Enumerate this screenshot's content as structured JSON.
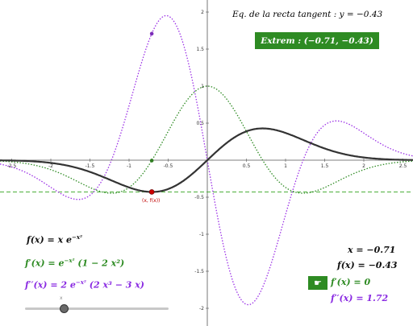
{
  "graph": {
    "x_range": [
      -2.6,
      2.6
    ],
    "y_range": [
      -2.1,
      2.05
    ],
    "x_ticks": [
      "-2.5",
      "-2",
      "-1.5",
      "-1",
      "-0.5",
      "0.5",
      "1",
      "1.5",
      "2",
      "2.5"
    ],
    "x_tick_values": [
      -2.5,
      -2,
      -1.5,
      -1,
      -0.5,
      0.5,
      1,
      1.5,
      2,
      2.5
    ],
    "y_ticks": [
      "2",
      "1.5",
      "1",
      "0.5",
      "-0.5",
      "-1",
      "-1.5",
      "-2"
    ],
    "y_tick_values": [
      2,
      1.5,
      1,
      0.5,
      -0.5,
      -1,
      -1.5,
      -2
    ],
    "colors": {
      "f": "#333333",
      "fp": "#2e8b23",
      "fpp": "#9b30e6",
      "tangent": "#4caf3a",
      "point": "#cc0000"
    },
    "x_point": -0.71,
    "tangent_y": -0.43
  },
  "texts": {
    "tangent": "Eq. de la recta tangent : y = −0.43",
    "extrem": "Extrem : (−0.71, −0.43)",
    "point_label": "(x, f(x))",
    "f_eq": "f(x) = x e",
    "f_exp": "−x²",
    "fp_eq": "f′(x) = e",
    "fp_exp": "−x²",
    "fp_rest": " (1 − 2 x²)",
    "fpp_eq": "f′′(x) = 2 e",
    "fpp_exp": "−x²",
    "fpp_rest": " (2 x³ − 3 x)",
    "x_val": "x = −0.71",
    "fx_val": "f(x) = −0.43",
    "fpx_val": "f′(x) = 0",
    "fppx_val": "f′′(x) = 1.72",
    "slider_label": "x",
    "hand_icon": "☛"
  }
}
